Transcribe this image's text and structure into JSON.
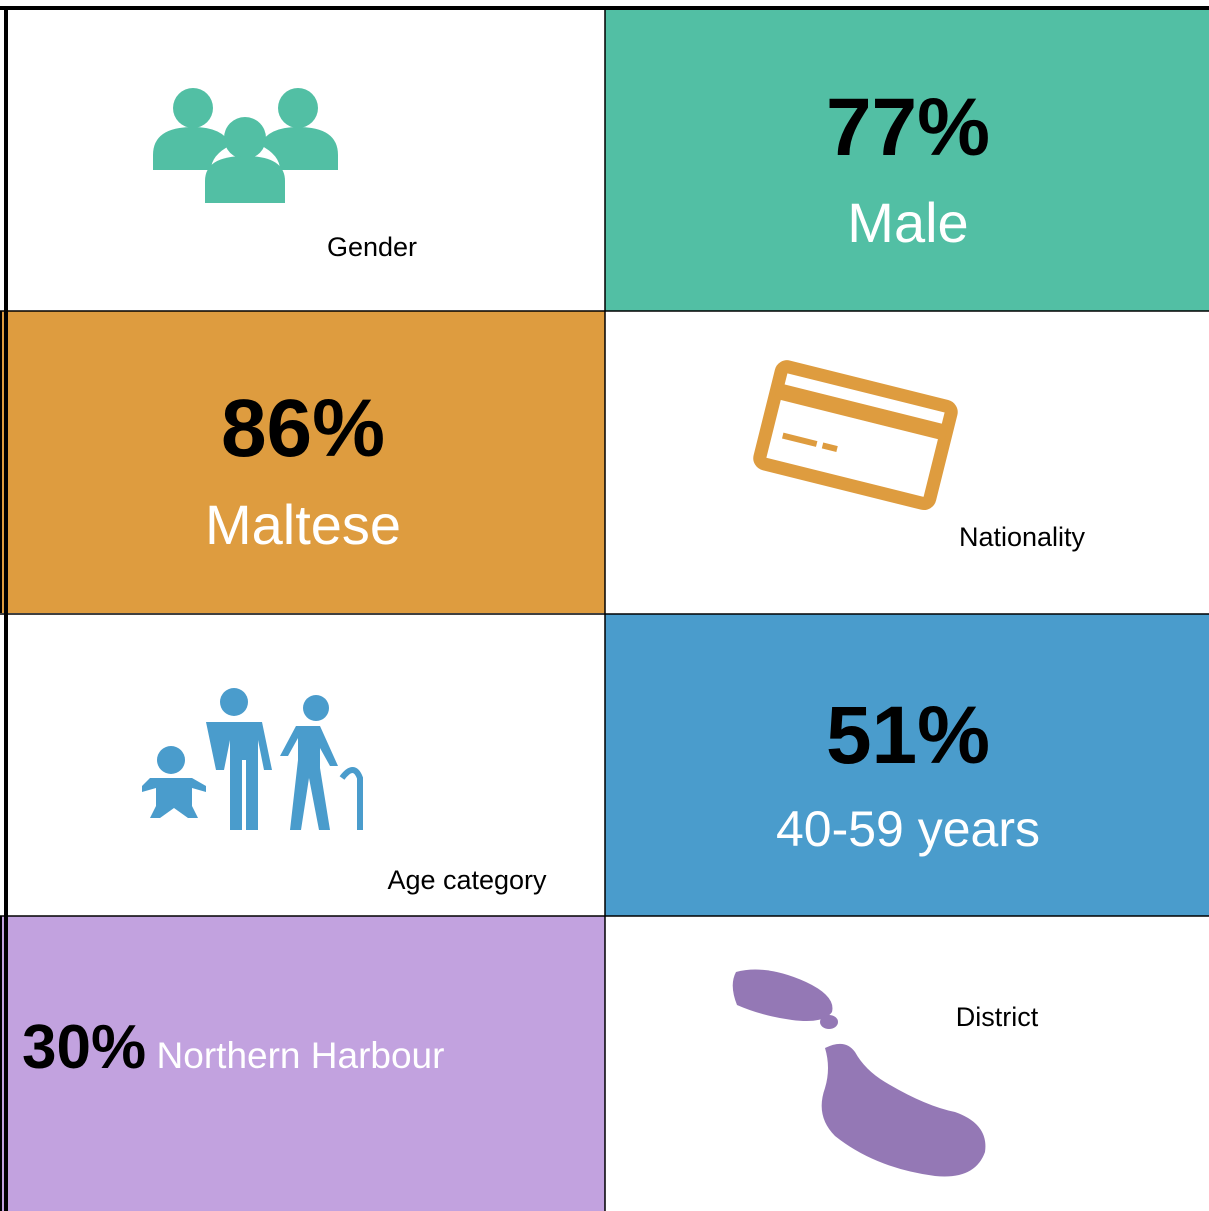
{
  "rows": [
    {
      "attribute": "Gender",
      "percent": "77%",
      "value": "Male"
    },
    {
      "attribute": "Nationality",
      "percent": "86%",
      "value": "Maltese"
    },
    {
      "attribute": "Age category",
      "percent": "51%",
      "value": "40-59 years"
    },
    {
      "attribute": "District",
      "percent": "30%",
      "value": "Northern Harbour"
    }
  ]
}
